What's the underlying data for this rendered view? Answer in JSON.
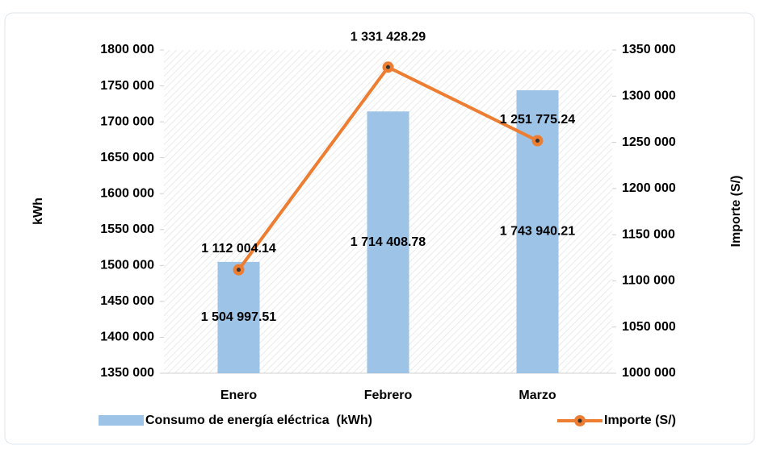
{
  "chart_data": {
    "type": "bar",
    "categories": [
      "Enero",
      "Febrero",
      "Marzo"
    ],
    "series": [
      {
        "name": "Consumo de energía eléctrica  (kWh)",
        "color": "#9dc3e6",
        "type": "bar",
        "axis": "y",
        "values": [
          1504997.51,
          1714408.78,
          1743940.21
        ],
        "value_labels": [
          "1 504 997.51",
          "1 714 408.78",
          "1 743 940.21"
        ]
      },
      {
        "name": "Importe (S/)",
        "color": "#ed7d31",
        "type": "line",
        "axis": "y2",
        "values": [
          1112004.14,
          1331428.29,
          1251775.24
        ],
        "value_labels": [
          "1 112 004.14",
          "1 331 428.29",
          "1 251 775.24"
        ]
      }
    ],
    "ylabel": "kWh",
    "y2label": "Importe (S/)",
    "ylim": [
      1350000,
      1800000
    ],
    "yticks": [
      {
        "value": 1350000,
        "label": "1350 000"
      },
      {
        "value": 1400000,
        "label": "1400 000"
      },
      {
        "value": 1450000,
        "label": "1450 000"
      },
      {
        "value": 1500000,
        "label": "1500 000"
      },
      {
        "value": 1550000,
        "label": "1550 000"
      },
      {
        "value": 1600000,
        "label": "1600 000"
      },
      {
        "value": 1650000,
        "label": "1650 000"
      },
      {
        "value": 1700000,
        "label": "1700 000"
      },
      {
        "value": 1750000,
        "label": "1750 000"
      },
      {
        "value": 1800000,
        "label": "1800 000"
      }
    ],
    "y2lim": [
      1000000,
      1350000
    ],
    "y2ticks": [
      {
        "value": 1000000,
        "label": "1000 000"
      },
      {
        "value": 1050000,
        "label": "1050 000"
      },
      {
        "value": 1100000,
        "label": "1100 000"
      },
      {
        "value": 1150000,
        "label": "1150 000"
      },
      {
        "value": 1200000,
        "label": "1200 000"
      },
      {
        "value": 1250000,
        "label": "1250 000"
      },
      {
        "value": 1300000,
        "label": "1300 000"
      },
      {
        "value": 1350000,
        "label": "1350 000"
      }
    ],
    "legend": "bottom"
  }
}
